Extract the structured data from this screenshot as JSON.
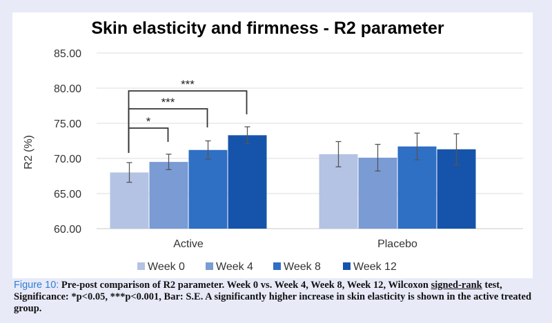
{
  "chart_data": {
    "type": "bar",
    "title": "Skin elasticity and firmness - R2 parameter",
    "ylabel": "R2 (%)",
    "xlabel": "",
    "ylim": [
      60,
      85
    ],
    "yticks": [
      "60.00",
      "65.00",
      "70.00",
      "75.00",
      "80.00",
      "85.00"
    ],
    "categories": [
      "Active",
      "Placebo"
    ],
    "series": [
      {
        "name": "Week 0",
        "color": "#b4c3e3",
        "values": [
          68.0,
          70.6
        ],
        "errors": [
          1.4,
          1.8
        ]
      },
      {
        "name": "Week 4",
        "color": "#7a9bd4",
        "values": [
          69.5,
          70.1
        ],
        "errors": [
          1.1,
          1.9
        ]
      },
      {
        "name": "Week 8",
        "color": "#2f6fc4",
        "values": [
          71.2,
          71.7
        ],
        "errors": [
          1.3,
          1.9
        ]
      },
      {
        "name": "Week 12",
        "color": "#1654ab",
        "values": [
          73.3,
          71.3
        ],
        "errors": [
          1.2,
          2.2
        ]
      }
    ],
    "grid": true,
    "legend_position": "bottom",
    "significance": [
      {
        "category": "Active",
        "from": "Week 0",
        "to": "Week 4",
        "label": "*"
      },
      {
        "category": "Active",
        "from": "Week 0",
        "to": "Week 8",
        "label": "***"
      },
      {
        "category": "Active",
        "from": "Week 0",
        "to": "Week 12",
        "label": "***"
      }
    ]
  },
  "caption": {
    "label": "Figure 10:",
    "text_a": " Pre-post comparison of R2 parameter. Week 0 vs. Week 4, Week 8, Week 12, Wilcoxon ",
    "underlined": "signed-rank",
    "text_b": " test, Significance: *p<0.05, ***p<0.001, Bar: S.E. A significantly higher increase in skin elasticity is shown in the active treated group."
  }
}
